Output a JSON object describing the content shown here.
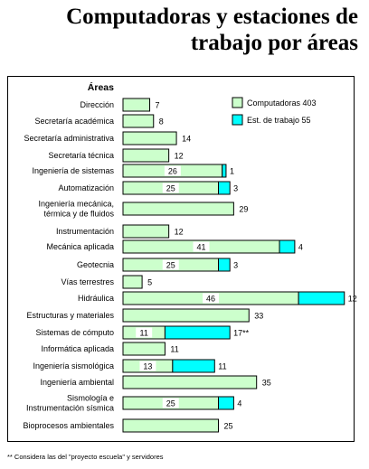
{
  "chart_data": {
    "type": "bar",
    "orientation": "horizontal",
    "stacked": true,
    "title": "Computadoras y estaciones de trabajo por áreas",
    "category_axis_label": "Áreas",
    "categories": [
      "Dirección",
      "Secretaría académica",
      "Secretaría administrativa",
      "Secretaría técnica",
      "Ingeniería de sistemas",
      "Automatización",
      "Ingeniería mecánica, térmica y de fluidos",
      "Instrumentación",
      "Mecánica aplicada",
      "Geotecnia",
      "Vías terrestres",
      "Hidráulica",
      "Estructuras y materiales",
      "Sistemas de cómputo",
      "Informática aplicada",
      "Ingeniería sismológica",
      "Ingeniería ambiental",
      "Sismología e Instrumentación sísmica",
      "Bioprocesos ambientales"
    ],
    "series": [
      {
        "name": "Computadoras 403",
        "color": "#ccffcc",
        "values": [
          7,
          8,
          14,
          12,
          26,
          25,
          29,
          12,
          41,
          25,
          5,
          46,
          33,
          11,
          11,
          13,
          35,
          25,
          25
        ],
        "labels": [
          "7",
          "8",
          "14",
          "12",
          "26",
          "25",
          "29",
          "12",
          "41",
          "25",
          "5",
          "46",
          "33",
          "11",
          "11",
          "13",
          "35",
          "25",
          "25"
        ]
      },
      {
        "name": "Est. de trabajo 55",
        "color": "#00ffff",
        "values": [
          0,
          0,
          0,
          0,
          1,
          3,
          0,
          0,
          4,
          3,
          0,
          12,
          0,
          17,
          0,
          11,
          0,
          4,
          0
        ],
        "labels": [
          "",
          "",
          "",
          "",
          "1",
          "3",
          "",
          "",
          "4",
          "3",
          "",
          "12",
          "",
          "17**",
          "",
          "11",
          "",
          "4",
          ""
        ]
      }
    ],
    "xlim": [
      0,
      60
    ],
    "grid": false,
    "legend_position": "top-right"
  },
  "footnote": "** Considera las del \"proyecto escuela\" y servidores"
}
